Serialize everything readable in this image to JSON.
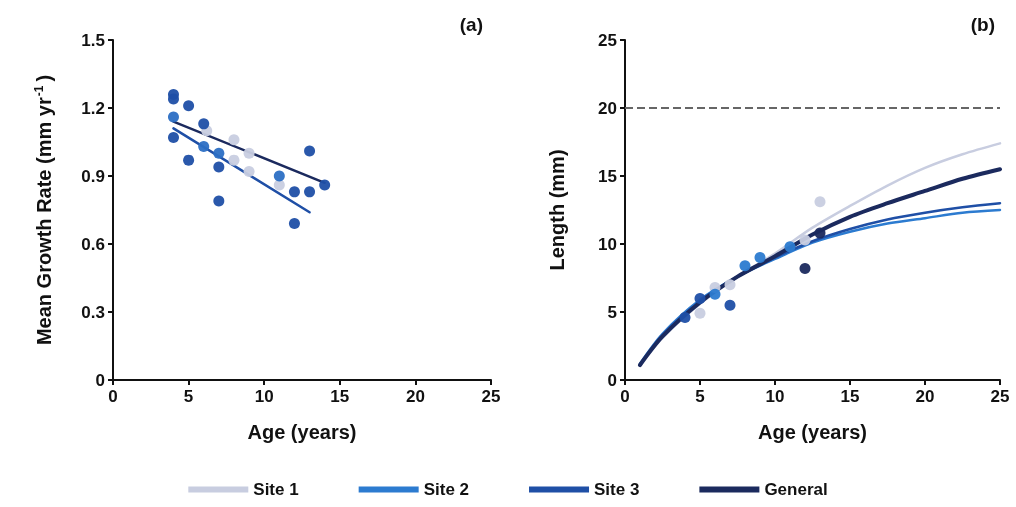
{
  "chart_data": [
    {
      "type": "scatter",
      "title": "(a)",
      "xlabel": "Age (years)",
      "ylabel": "Mean Growth Rate (mm yr$^{-1}$)",
      "xlim": [
        0,
        25
      ],
      "xticks": [
        0,
        5,
        10,
        15,
        20,
        25
      ],
      "ylim": [
        0,
        1.5
      ],
      "yticks": [
        0.0,
        0.3,
        0.6,
        0.9,
        1.2,
        1.5
      ],
      "marker": "circle",
      "series": [
        {
          "color": "#c8cde0",
          "x": [
            6.2,
            8,
            8,
            9,
            9,
            11
          ],
          "values": [
            1.1,
            1.06,
            0.97,
            1.0,
            0.92,
            0.86
          ]
        },
        {
          "color": "#2c6fc4",
          "x": [
            4,
            6,
            7,
            11
          ],
          "values": [
            1.16,
            1.03,
            1.0,
            0.9
          ]
        },
        {
          "color": "#1f4fa6",
          "x": [
            4,
            4,
            4,
            5,
            5,
            6,
            7,
            7,
            12,
            12,
            13,
            13,
            14
          ],
          "values": [
            1.26,
            1.24,
            1.07,
            1.21,
            0.97,
            1.13,
            0.94,
            0.79,
            0.83,
            0.69,
            1.01,
            0.83,
            0.86
          ]
        },
        {
          "type": "line",
          "marker": "none",
          "color": "#1b2a5e",
          "x": [
            4,
            14
          ],
          "values": [
            1.14,
            0.87
          ]
        },
        {
          "type": "line",
          "marker": "none",
          "color": "#1f4fa6",
          "x": [
            4,
            13
          ],
          "values": [
            1.11,
            0.74
          ]
        }
      ]
    },
    {
      "type": "line",
      "title": "(b)",
      "xlabel": "Age (years)",
      "ylabel": "Length (mm)",
      "xlim": [
        0,
        25
      ],
      "xticks": [
        0,
        5,
        10,
        15,
        20,
        25
      ],
      "ylim": [
        0,
        25
      ],
      "yticks": [
        0,
        5,
        10,
        15,
        20,
        25
      ],
      "legend": "bottom",
      "marker": "none",
      "ref_lines": [
        {
          "axis": "y",
          "value": 20,
          "color": "#666666",
          "line_style": "dashed"
        }
      ],
      "series": [
        {
          "name": "Site 1",
          "color": "#c8cde0",
          "x": [
            1,
            2.5,
            5,
            7.5,
            10,
            12.5,
            15,
            17.5,
            20,
            22.5,
            25
          ],
          "values": [
            1.1,
            3.1,
            5.6,
            7.6,
            9.3,
            11.2,
            12.8,
            14.3,
            15.6,
            16.6,
            17.4
          ]
        },
        {
          "name": "Site 2",
          "color": "#2c7bd0",
          "x": [
            1,
            2.5,
            5,
            7.5,
            10,
            12.5,
            15,
            17.5,
            20,
            22.5,
            25
          ],
          "values": [
            1.2,
            3.4,
            5.9,
            7.6,
            8.9,
            10.1,
            10.9,
            11.5,
            11.9,
            12.3,
            12.5
          ]
        },
        {
          "name": "Site 3",
          "color": "#1f4fa6",
          "x": [
            1,
            2.5,
            5,
            7.5,
            10,
            12.5,
            15,
            17.5,
            20,
            22.5,
            25
          ],
          "values": [
            1.1,
            3.3,
            5.8,
            7.6,
            9.0,
            10.2,
            11.1,
            11.8,
            12.3,
            12.7,
            13.0
          ]
        },
        {
          "name": "General",
          "color": "#1b2a5e",
          "x": [
            1,
            2.5,
            5,
            7.5,
            10,
            12.5,
            15,
            17.5,
            20,
            22.5,
            25
          ],
          "values": [
            1.1,
            3.2,
            5.7,
            7.6,
            9.1,
            10.7,
            12.0,
            13.0,
            13.9,
            14.8,
            15.5
          ]
        },
        {
          "type": "scatter",
          "marker": "circle",
          "color": "#c8cde0",
          "x": [
            5,
            6,
            7,
            12,
            13
          ],
          "values": [
            4.9,
            6.8,
            7.0,
            10.3,
            13.1
          ]
        },
        {
          "type": "scatter",
          "marker": "circle",
          "color": "#2c7bd0",
          "x": [
            6,
            8,
            9,
            11
          ],
          "values": [
            6.3,
            8.4,
            9.0,
            9.8
          ]
        },
        {
          "type": "scatter",
          "marker": "circle",
          "color": "#1f4fa6",
          "x": [
            4,
            5,
            7
          ],
          "values": [
            4.6,
            6.0,
            5.5
          ]
        },
        {
          "type": "scatter",
          "marker": "circle",
          "color": "#1b2a5e",
          "x": [
            12,
            13
          ],
          "values": [
            8.2,
            10.8
          ]
        }
      ]
    }
  ]
}
